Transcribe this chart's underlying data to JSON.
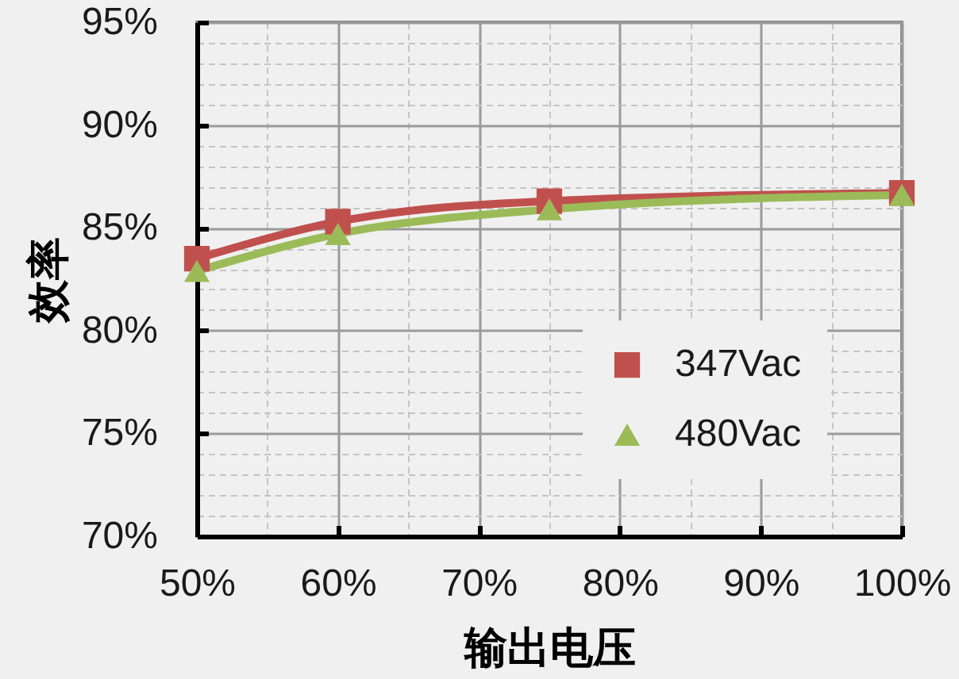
{
  "chart_data": {
    "type": "line",
    "xlabel": "输出电压",
    "ylabel": "效率",
    "x": [
      50,
      60,
      75,
      100
    ],
    "series": [
      {
        "name": "347Vac",
        "color": "#c0504d",
        "marker": "square",
        "values": [
          83.5,
          85.3,
          86.3,
          86.7
        ]
      },
      {
        "name": "480Vac",
        "color": "#9bbb59",
        "marker": "triangle",
        "values": [
          82.9,
          84.7,
          85.9,
          86.6
        ]
      }
    ],
    "xlim": [
      50,
      100
    ],
    "xticks": [
      {
        "value": 50,
        "label": "50%"
      },
      {
        "value": 55,
        "label": null
      },
      {
        "value": 60,
        "label": "60%"
      },
      {
        "value": 65,
        "label": null
      },
      {
        "value": 70,
        "label": "70%"
      },
      {
        "value": 75,
        "label": null
      },
      {
        "value": 80,
        "label": "80%"
      },
      {
        "value": 85,
        "label": null
      },
      {
        "value": 90,
        "label": "90%"
      },
      {
        "value": 95,
        "label": null
      },
      {
        "value": 100,
        "label": "100%"
      }
    ],
    "ylim": [
      70,
      95
    ],
    "yticks": [
      {
        "value": 70,
        "label": "70%"
      },
      {
        "value": 71,
        "label": null
      },
      {
        "value": 72,
        "label": null
      },
      {
        "value": 73,
        "label": null
      },
      {
        "value": 74,
        "label": null
      },
      {
        "value": 75,
        "label": "75%"
      },
      {
        "value": 76,
        "label": null
      },
      {
        "value": 77,
        "label": null
      },
      {
        "value": 78,
        "label": null
      },
      {
        "value": 79,
        "label": null
      },
      {
        "value": 80,
        "label": "80%"
      },
      {
        "value": 81,
        "label": null
      },
      {
        "value": 82,
        "label": null
      },
      {
        "value": 83,
        "label": null
      },
      {
        "value": 84,
        "label": null
      },
      {
        "value": 85,
        "label": "85%"
      },
      {
        "value": 86,
        "label": null
      },
      {
        "value": 87,
        "label": null
      },
      {
        "value": 88,
        "label": null
      },
      {
        "value": 89,
        "label": null
      },
      {
        "value": 90,
        "label": "90%"
      },
      {
        "value": 91,
        "label": null
      },
      {
        "value": 92,
        "label": null
      },
      {
        "value": 93,
        "label": null
      },
      {
        "value": 94,
        "label": null
      },
      {
        "value": 95,
        "label": "95%"
      }
    ],
    "grid": true,
    "legend": "bottom right"
  }
}
